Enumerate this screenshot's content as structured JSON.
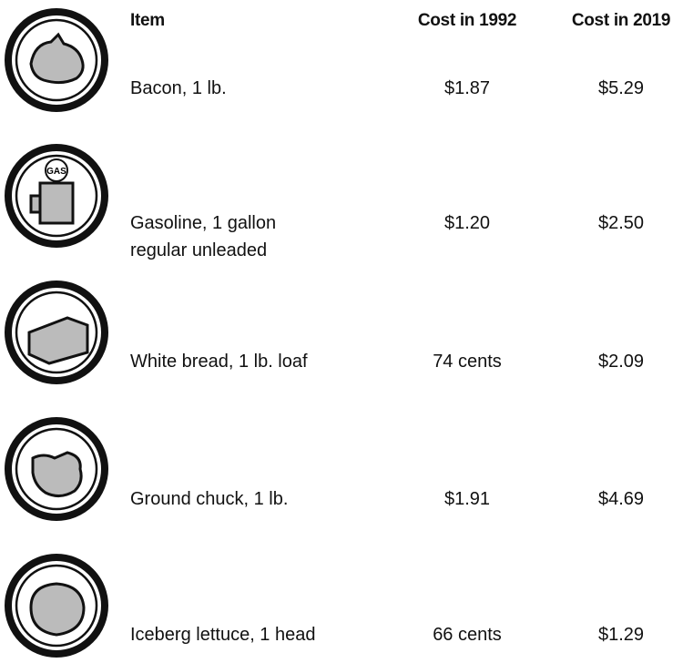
{
  "table": {
    "header": [
      "Item",
      "Cost in 1992",
      "Cost in 2019"
    ],
    "rows": [
      {
        "item": [
          "Bacon, 1 lb."
        ],
        "cost_1992": "$1.87",
        "cost_2019": "$5.29"
      },
      {
        "item": [
          "Gasoline, 1 gallon",
          "regular unleaded"
        ],
        "cost_1992": "$1.20",
        "cost_2019": "$2.50",
        "icon_text": "GAS"
      },
      {
        "item": [
          "White bread, 1 lb. loaf"
        ],
        "cost_1992": "74 cents",
        "cost_2019": "$2.09"
      },
      {
        "item": [
          "Ground chuck, 1 lb."
        ],
        "cost_1992": "$1.91",
        "cost_2019": "$4.69"
      },
      {
        "item": [
          "Iceberg lettuce, 1 head"
        ],
        "cost_1992": "66 cents",
        "cost_2019": "$1.29"
      }
    ]
  }
}
